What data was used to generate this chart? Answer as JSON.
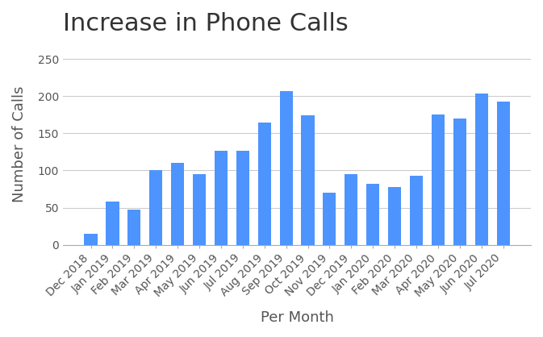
{
  "title": "Increase in Phone Calls",
  "xlabel": "Per Month",
  "ylabel": "Number of Calls",
  "categories": [
    "Dec 2018",
    "Jan 2019",
    "Feb 2019",
    "Mar 2019",
    "Apr 2019",
    "May 2019",
    "Jun 2019",
    "Jul 2019",
    "Aug 2019",
    "Sep 2019",
    "Oct 2019",
    "Nov 2019",
    "Dec 2019",
    "Jan 2020",
    "Feb 2020",
    "Mar 2020",
    "Apr 2020",
    "May 2020",
    "Jun 2020",
    "Jul 2020"
  ],
  "values": [
    15,
    58,
    47,
    100,
    110,
    95,
    127,
    127,
    165,
    207,
    174,
    70,
    95,
    82,
    78,
    93,
    175,
    170,
    204,
    193
  ],
  "bar_color": "#4d94ff",
  "ylim": [
    0,
    270
  ],
  "yticks": [
    0,
    50,
    100,
    150,
    200,
    250
  ],
  "background_color": "#ffffff",
  "grid_color": "#cccccc",
  "title_fontsize": 22,
  "label_fontsize": 13,
  "tick_fontsize": 10
}
